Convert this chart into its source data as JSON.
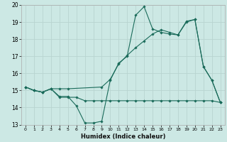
{
  "xlabel": "Humidex (Indice chaleur)",
  "background_color": "#cce8e4",
  "grid_color": "#b8d4d0",
  "line_color": "#1a6b5a",
  "xlim": [
    -0.5,
    23.5
  ],
  "ylim": [
    13,
    20
  ],
  "xticks": [
    0,
    1,
    2,
    3,
    4,
    5,
    6,
    7,
    8,
    9,
    10,
    11,
    12,
    13,
    14,
    15,
    16,
    17,
    18,
    19,
    20,
    21,
    22,
    23
  ],
  "yticks": [
    13,
    14,
    15,
    16,
    17,
    18,
    19,
    20
  ],
  "series1_x": [
    0,
    1,
    2,
    3,
    4,
    5,
    6,
    7,
    8,
    9,
    10,
    11,
    12,
    13,
    14,
    15,
    16,
    17,
    18,
    19,
    20,
    21,
    22,
    23
  ],
  "series1_y": [
    15.2,
    15.0,
    14.9,
    15.1,
    14.65,
    14.65,
    14.1,
    13.1,
    13.1,
    13.2,
    15.6,
    16.6,
    17.0,
    19.4,
    19.9,
    18.6,
    18.4,
    18.3,
    18.25,
    19.05,
    19.15,
    16.4,
    15.6,
    14.3
  ],
  "series2_x": [
    0,
    1,
    2,
    3,
    4,
    5,
    6,
    7,
    8,
    9,
    10,
    11,
    12,
    13,
    14,
    15,
    16,
    17,
    18,
    19,
    20,
    21,
    22,
    23
  ],
  "series2_y": [
    15.2,
    15.0,
    14.9,
    15.1,
    14.6,
    14.6,
    14.6,
    14.4,
    14.4,
    14.4,
    14.4,
    14.4,
    14.4,
    14.4,
    14.4,
    14.4,
    14.4,
    14.4,
    14.4,
    14.4,
    14.4,
    14.4,
    14.4,
    14.3
  ],
  "series3_x": [
    0,
    1,
    2,
    3,
    4,
    5,
    9,
    10,
    11,
    12,
    13,
    14,
    15,
    16,
    17,
    18,
    19,
    20,
    21,
    22,
    23
  ],
  "series3_y": [
    15.2,
    15.0,
    14.9,
    15.1,
    15.1,
    15.1,
    15.2,
    15.65,
    16.55,
    17.05,
    17.5,
    17.9,
    18.3,
    18.55,
    18.4,
    18.25,
    19.0,
    19.15,
    16.4,
    15.6,
    14.3
  ]
}
